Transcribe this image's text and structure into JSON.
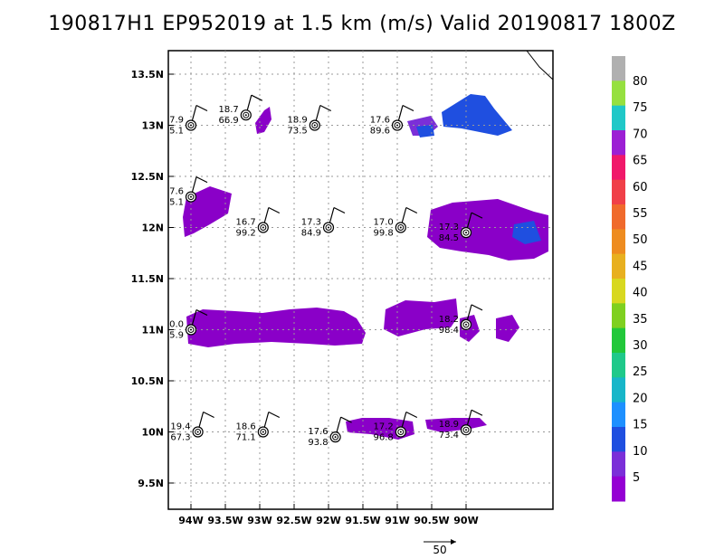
{
  "title": "190817H1 EP952019 at 1.5 km (m/s) Valid 20190817  1800Z",
  "axes": {
    "lon_ticks": [
      {
        "lon": -94.0,
        "label": "94W"
      },
      {
        "lon": -93.5,
        "label": "93.5W"
      },
      {
        "lon": -93.0,
        "label": "93W"
      },
      {
        "lon": -92.5,
        "label": "92.5W"
      },
      {
        "lon": -92.0,
        "label": "92W"
      },
      {
        "lon": -91.5,
        "label": "91.5W"
      },
      {
        "lon": -91.0,
        "label": "91W"
      },
      {
        "lon": -90.5,
        "label": "90.5W"
      },
      {
        "lon": -90.0,
        "label": "90W"
      }
    ],
    "lat_ticks": [
      {
        "lat": 13.5,
        "label": "13.5N"
      },
      {
        "lat": 13.0,
        "label": "13N"
      },
      {
        "lat": 12.5,
        "label": "12.5N"
      },
      {
        "lat": 12.0,
        "label": "12N"
      },
      {
        "lat": 11.5,
        "label": "11.5N"
      },
      {
        "lat": 11.0,
        "label": "11N"
      },
      {
        "lat": 10.5,
        "label": "10.5N"
      },
      {
        "lat": 10.0,
        "label": "10N"
      },
      {
        "lat": 9.5,
        "label": "9.5N"
      }
    ]
  },
  "colorbar": {
    "labels": [
      "5",
      "10",
      "15",
      "20",
      "25",
      "30",
      "35",
      "40",
      "45",
      "50",
      "55",
      "60",
      "65",
      "70",
      "75",
      "80"
    ],
    "colors": [
      "#9400d3",
      "#7b2fd8",
      "#1f4fe0",
      "#1e90ff",
      "#17b6c9",
      "#1fc98a",
      "#22c83a",
      "#7fd020",
      "#d8d820",
      "#e8b020",
      "#ee8c20",
      "#f06a2c",
      "#f04048",
      "#f0186a",
      "#9c1fd4",
      "#20c8c8",
      "#96e040",
      "#b0b0b0"
    ]
  },
  "reference_vector": {
    "label": "50"
  },
  "stations": [
    {
      "lon": -94.0,
      "lat": 13.0,
      "top": "7.9",
      "bottom": "5.1"
    },
    {
      "lon": -93.2,
      "lat": 13.1,
      "top": "18.7",
      "bottom": "66.9"
    },
    {
      "lon": -92.2,
      "lat": 13.0,
      "top": "18.9",
      "bottom": "73.5"
    },
    {
      "lon": -91.0,
      "lat": 13.0,
      "top": "17.6",
      "bottom": "89.6"
    },
    {
      "lon": -94.0,
      "lat": 12.3,
      "top": "7.6",
      "bottom": "5.1"
    },
    {
      "lon": -92.95,
      "lat": 12.0,
      "top": "16.7",
      "bottom": "99.2"
    },
    {
      "lon": -92.0,
      "lat": 12.0,
      "top": "17.3",
      "bottom": "84.9"
    },
    {
      "lon": -90.95,
      "lat": 12.0,
      "top": "17.0",
      "bottom": "99.8"
    },
    {
      "lon": -90.0,
      "lat": 11.95,
      "top": "17.3",
      "bottom": "84.5"
    },
    {
      "lon": -94.0,
      "lat": 11.0,
      "top": "0.0",
      "bottom": "5.9"
    },
    {
      "lon": -90.0,
      "lat": 11.05,
      "top": "18.2",
      "bottom": "98.4"
    },
    {
      "lon": -93.9,
      "lat": 10.0,
      "top": "19.4",
      "bottom": "67.3"
    },
    {
      "lon": -92.95,
      "lat": 10.0,
      "top": "18.6",
      "bottom": "71.1"
    },
    {
      "lon": -91.9,
      "lat": 9.95,
      "top": "17.6",
      "bottom": "93.8"
    },
    {
      "lon": -90.95,
      "lat": 10.0,
      "top": "17.2",
      "bottom": "96.8"
    },
    {
      "lon": -90.0,
      "lat": 10.02,
      "top": "18.9",
      "bottom": "73.4"
    }
  ]
}
